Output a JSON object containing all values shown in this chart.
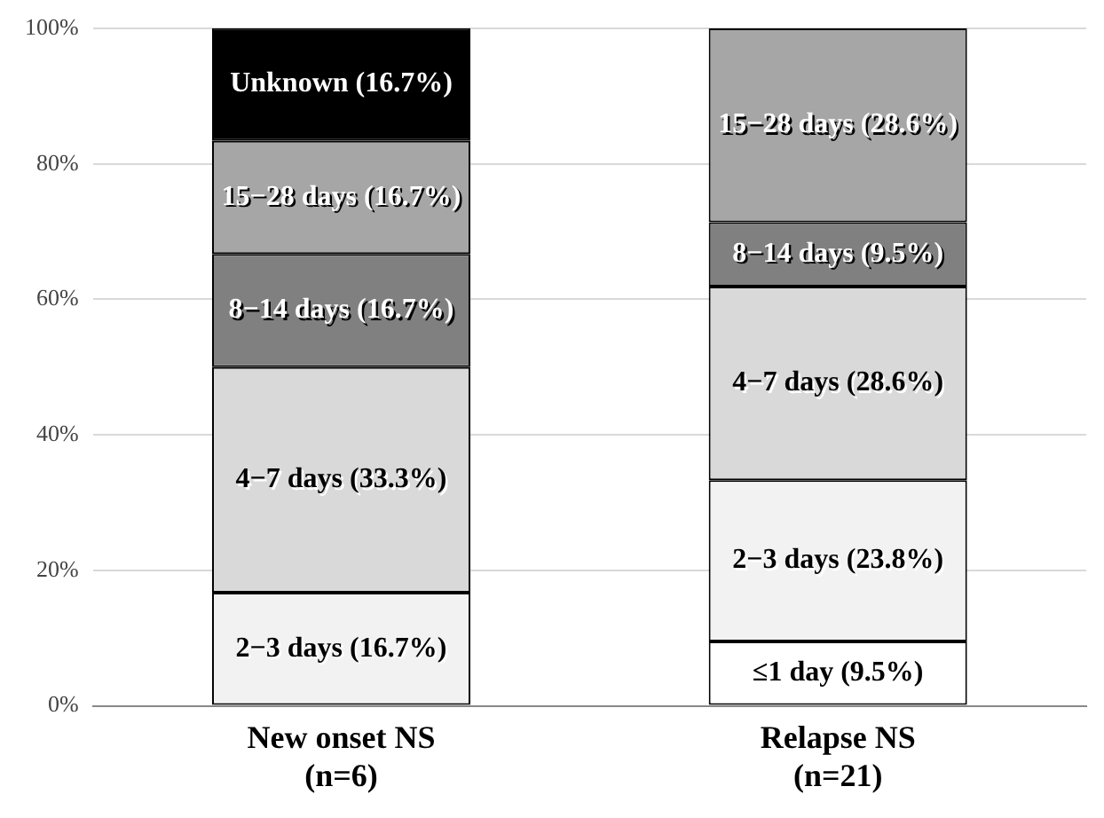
{
  "chart_data": {
    "type": "bar",
    "stacked": true,
    "categories": [
      "New onset NS\n(n=6)",
      "Relapse NS\n(n=21)"
    ],
    "series": [
      {
        "color": "#ffffff",
        "values": [
          null,
          9.5
        ],
        "value_labels": [
          null,
          "≤1 day (9.5%)"
        ]
      },
      {
        "color": "#f2f2f2",
        "values": [
          16.7,
          23.8
        ],
        "value_labels": [
          "2−3 days (16.7%)",
          "2−3 days (23.8%)"
        ]
      },
      {
        "color": "#d9d9d9",
        "values": [
          33.3,
          28.6
        ],
        "value_labels": [
          "4−7 days (33.3%)",
          "4−7 days (28.6%)"
        ]
      },
      {
        "color": "#808080",
        "values": [
          16.7,
          9.5
        ],
        "value_labels": [
          "8−14 days (16.7%)",
          "8−14 days (9.5%)"
        ]
      },
      {
        "color": "#a6a6a6",
        "values": [
          16.7,
          28.6
        ],
        "value_labels": [
          "15−28 days (16.7%)",
          "15−28 days (28.6%)"
        ]
      },
      {
        "color": "#000000",
        "values": [
          16.7,
          null
        ],
        "value_labels": [
          "Unknown (16.7%)",
          null
        ]
      }
    ],
    "ylim": [
      0,
      100
    ],
    "yticks": [
      {
        "value": 0,
        "label": "0%"
      },
      {
        "value": 20,
        "label": "20%"
      },
      {
        "value": 40,
        "label": "40%"
      },
      {
        "value": 60,
        "label": "60%"
      },
      {
        "value": 80,
        "label": "80%"
      },
      {
        "value": 100,
        "label": "100%"
      }
    ],
    "grid": "y",
    "legend": false
  }
}
